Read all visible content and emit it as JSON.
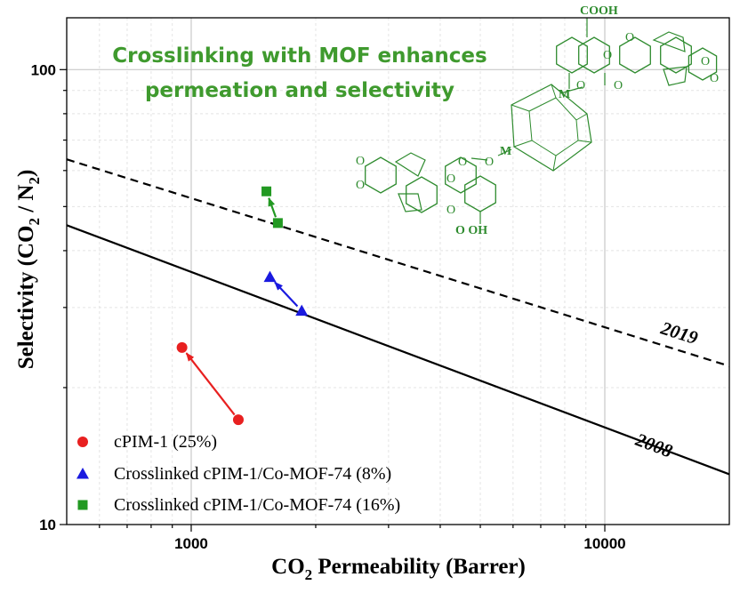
{
  "chart_data": {
    "type": "scatter",
    "title": "Crosslinking with MOF enhances permeation and selectivity",
    "title_lines": [
      "Crosslinking with MOF enhances",
      "permeation and selectivity"
    ],
    "xlabel": {
      "main": "CO",
      "sub": "2",
      "rest": " Permeability (Barrer)"
    },
    "ylabel": {
      "a": "Selectivity (CO",
      "sub1": "2",
      "b": " / N",
      "sub2": "2",
      "c": ")"
    },
    "x_scale": "log",
    "y_scale": "log",
    "xlim": [
      500,
      20000
    ],
    "ylim": [
      10,
      130
    ],
    "x_ticks": [
      1000,
      10000
    ],
    "x_tick_labels": [
      "1000",
      "10000"
    ],
    "y_ticks": [
      10,
      100
    ],
    "y_tick_labels": [
      "10",
      "100"
    ],
    "grid": true,
    "legend_position": "bottom-left",
    "series": [
      {
        "name": "cPIM-1 (25%)",
        "marker": "circle",
        "color": "#e82020",
        "points": [
          [
            1300,
            17.0
          ],
          [
            950,
            24.5
          ]
        ]
      },
      {
        "name": "Crosslinked cPIM-1/Co-MOF-74 (8%)",
        "marker": "triangle",
        "color": "#1a1adf",
        "points": [
          [
            1850,
            29.5
          ],
          [
            1550,
            35.0
          ]
        ]
      },
      {
        "name": "Crosslinked cPIM-1/Co-MOF-74 (16%)",
        "marker": "square",
        "color": "#229922",
        "points": [
          [
            1620,
            46.0
          ],
          [
            1520,
            54.0
          ]
        ]
      }
    ],
    "upper_bounds": [
      {
        "label": "2008",
        "style": "solid",
        "points": [
          [
            500,
            45.5
          ],
          [
            20000,
            12.9
          ]
        ],
        "label_at": [
          13000,
          14.5
        ]
      },
      {
        "label": "2019",
        "style": "dashed",
        "points": [
          [
            500,
            63.5
          ],
          [
            20000,
            22.3
          ]
        ],
        "label_at": [
          15000,
          25.6
        ]
      }
    ],
    "structure_labels": {
      "cooh": "COOH",
      "cooh_bottom": "O    OH",
      "metal": "M",
      "o": "O"
    }
  }
}
